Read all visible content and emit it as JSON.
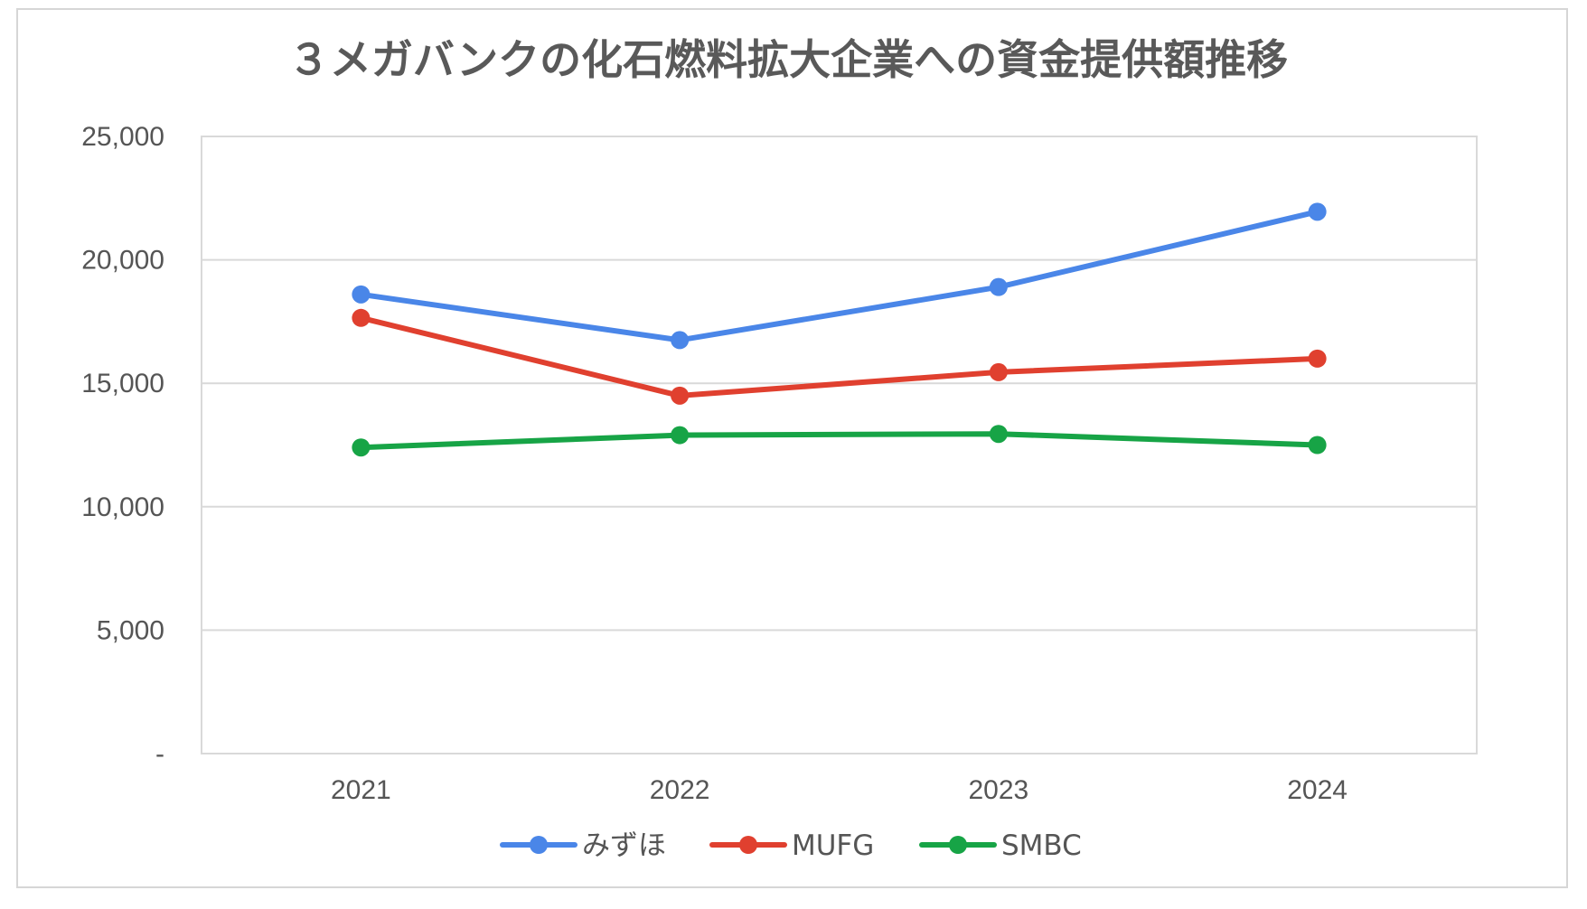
{
  "chart_data": {
    "type": "line",
    "title": "３メガバンクの化石燃料拡大企業への資金提供額推移",
    "categories": [
      "2021",
      "2022",
      "2023",
      "2024"
    ],
    "series": [
      {
        "name": "みずほ",
        "color": "#4a86e8",
        "values": [
          18600,
          16750,
          18900,
          21950
        ]
      },
      {
        "name": "MUFG",
        "color": "#e0402f",
        "values": [
          17650,
          14500,
          15450,
          16000
        ]
      },
      {
        "name": "SMBC",
        "color": "#17a446",
        "values": [
          12400,
          12900,
          12950,
          12500
        ]
      }
    ],
    "ylim": [
      0,
      25000
    ],
    "yticks": [
      0,
      5000,
      10000,
      15000,
      20000,
      25000
    ],
    "ytick_labels": [
      "-",
      "5,000",
      "10,000",
      "15,000",
      "20,000",
      "25,000"
    ],
    "grid": true,
    "legend": "bottom",
    "xlabel": "",
    "ylabel": ""
  }
}
